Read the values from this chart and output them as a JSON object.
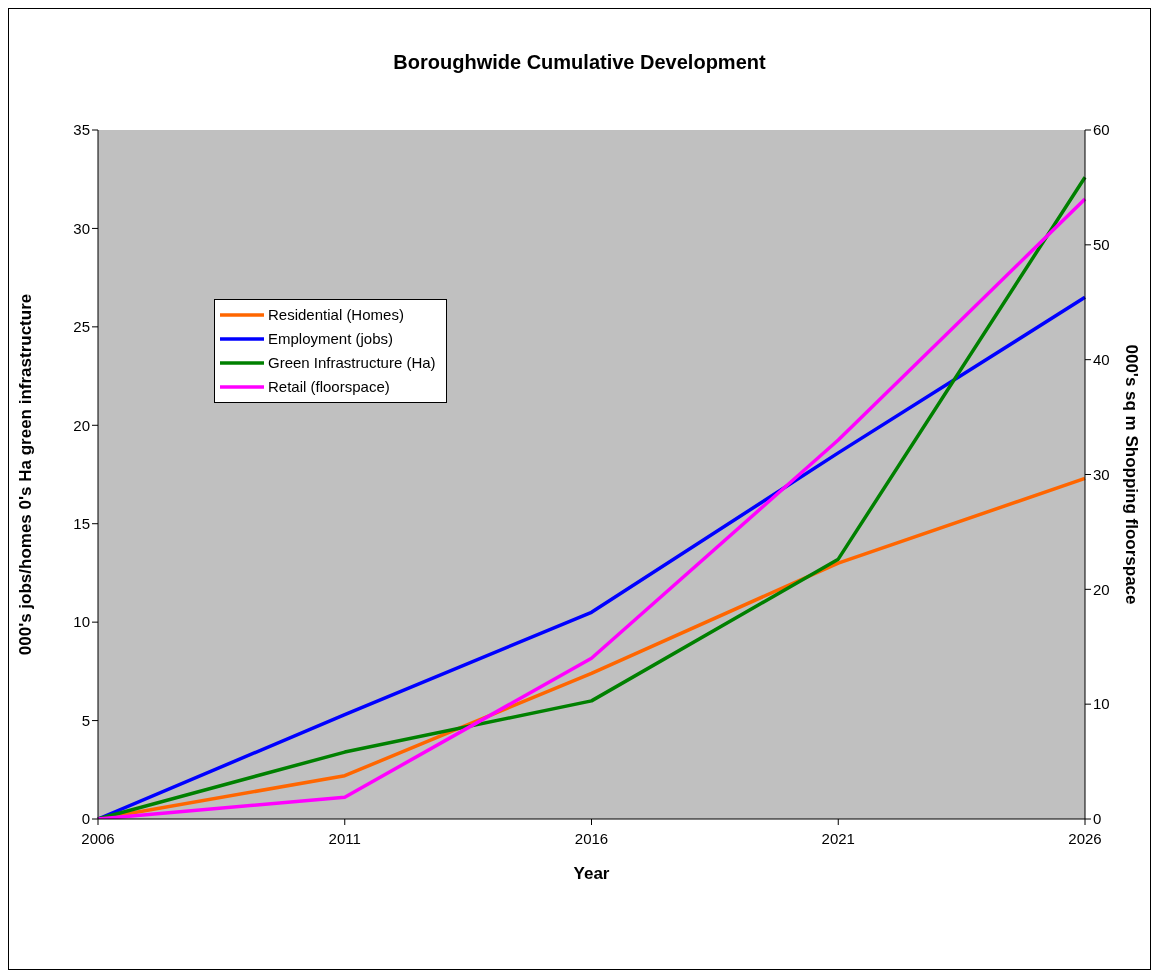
{
  "chart_data": {
    "type": "line",
    "title": "Boroughwide Cumulative Development",
    "xlabel": "Year",
    "ylabel": "000's jobs/homes        0's Ha green infrastructure",
    "y2label": "000's sq m Shopping floorspace",
    "categories": [
      "2006",
      "2011",
      "2016",
      "2021",
      "2026"
    ],
    "series": [
      {
        "name": "Residential (Homes)",
        "color": "#ff6600",
        "values": [
          0,
          2.2,
          7.4,
          13.0,
          17.3
        ]
      },
      {
        "name": "Employment (jobs)",
        "color": "#0000ff",
        "values": [
          0,
          5.3,
          10.5,
          18.6,
          26.5
        ]
      },
      {
        "name": "Green Infrastructure (Ha)",
        "color": "#008000",
        "values": [
          0,
          3.4,
          6.0,
          13.2,
          32.6
        ]
      },
      {
        "name": "Retail (floorspace)",
        "color": "#ff00ff",
        "axis": "y2",
        "values": [
          0,
          1.9,
          14.0,
          33.0,
          54.0
        ]
      }
    ],
    "ylim": [
      0,
      35
    ],
    "yticks": [
      0,
      5,
      10,
      15,
      20,
      25,
      30,
      35
    ],
    "y2lim": [
      0,
      60
    ],
    "y2ticks": [
      0,
      10,
      20,
      30,
      40,
      50,
      60
    ],
    "legend": "top left"
  }
}
